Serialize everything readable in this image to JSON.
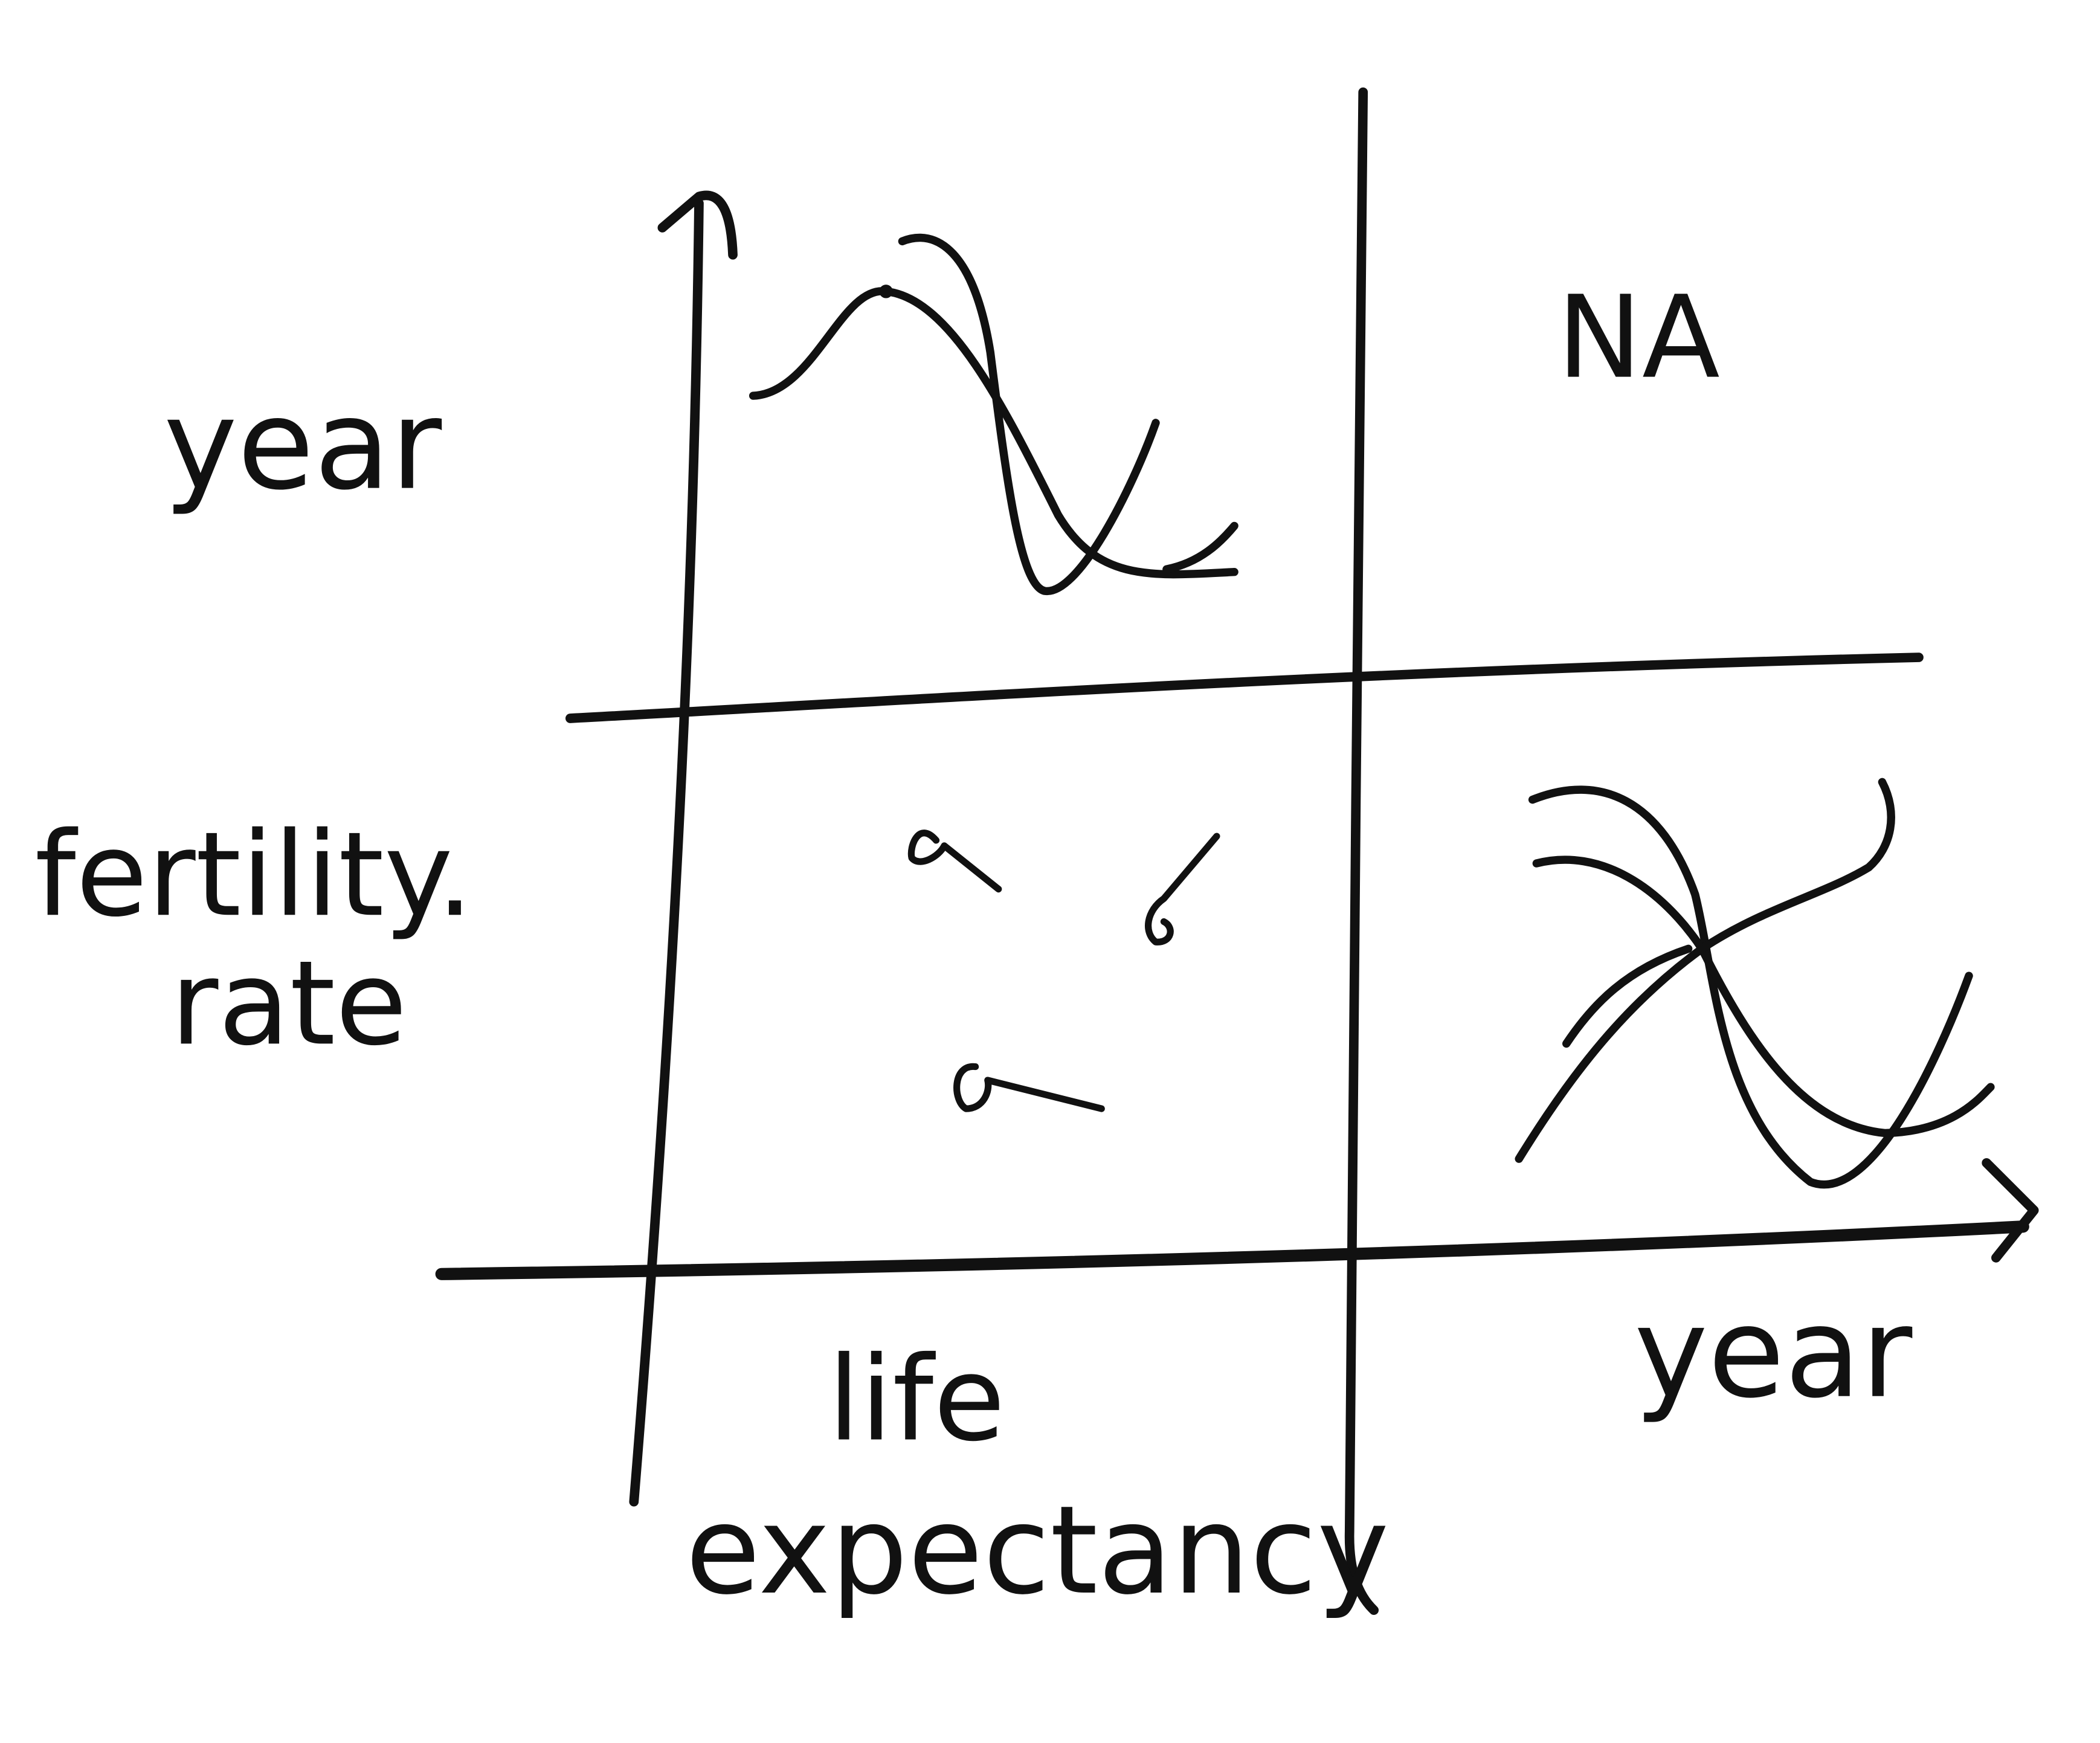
{
  "labels": {
    "row_top": "year",
    "row_bottom_line1": "fertility.",
    "row_bottom_line2": "rate",
    "col_left_line1": "life",
    "col_left_line2": "expectancy",
    "col_right": "year",
    "empty_cell": "NA"
  },
  "colors": {
    "ink": "#111111",
    "paper": "#ffffff"
  }
}
